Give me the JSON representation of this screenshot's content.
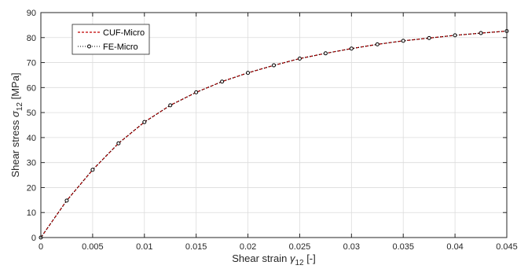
{
  "chart_data": {
    "type": "line",
    "xlabel": {
      "main": "Shear strain ",
      "sym": "γ",
      "sub": "12",
      "rest": " [-]"
    },
    "ylabel": {
      "main": "Shear stress ",
      "sym": "σ",
      "sub": "12",
      "rest": " [MPa]"
    },
    "xlim": [
      0,
      0.045
    ],
    "ylim": [
      0,
      90
    ],
    "x_ticks": [
      0,
      0.005,
      0.01,
      0.015,
      0.02,
      0.025,
      0.03,
      0.035,
      0.04,
      0.045
    ],
    "x_tick_labels": [
      "0",
      "0.005",
      "0.01",
      "0.015",
      "0.02",
      "0.025",
      "0.03",
      "0.035",
      "0.04",
      "0.045"
    ],
    "y_ticks": [
      0,
      10,
      20,
      30,
      40,
      50,
      60,
      70,
      80,
      90
    ],
    "y_tick_labels": [
      "0",
      "10",
      "20",
      "30",
      "40",
      "50",
      "60",
      "70",
      "80",
      "90"
    ],
    "grid": true,
    "legend_position": "top-left",
    "series": [
      {
        "name": "CUF-Micro",
        "style": "dashed",
        "color": "#c00000",
        "x": [
          0,
          0.0025,
          0.005,
          0.0075,
          0.01,
          0.0125,
          0.015,
          0.0175,
          0.02,
          0.0225,
          0.025,
          0.0275,
          0.03,
          0.0325,
          0.035,
          0.0375,
          0.04,
          0.0425,
          0.045
        ],
        "y": [
          0,
          14.8,
          27.1,
          37.7,
          46.2,
          52.9,
          58.1,
          62.4,
          65.9,
          68.9,
          71.6,
          73.7,
          75.6,
          77.3,
          78.7,
          79.8,
          80.9,
          81.8,
          82.6
        ]
      },
      {
        "name": "FE-Micro",
        "style": "dotted-circle",
        "color": "#000000",
        "x": [
          0,
          0.0025,
          0.005,
          0.0075,
          0.01,
          0.0125,
          0.015,
          0.0175,
          0.02,
          0.0225,
          0.025,
          0.0275,
          0.03,
          0.0325,
          0.035,
          0.0375,
          0.04,
          0.0425,
          0.045
        ],
        "y": [
          0,
          14.8,
          27.1,
          37.7,
          46.2,
          52.9,
          58.1,
          62.4,
          65.9,
          68.9,
          71.6,
          73.7,
          75.6,
          77.3,
          78.7,
          79.8,
          80.9,
          81.8,
          82.6
        ]
      }
    ]
  }
}
